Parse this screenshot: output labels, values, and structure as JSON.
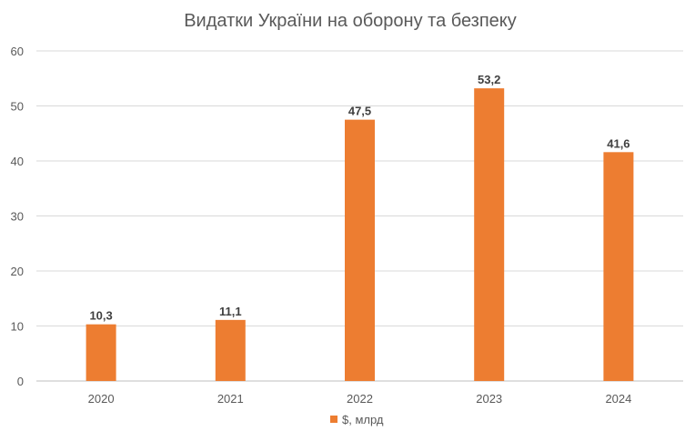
{
  "chart_data": {
    "type": "bar",
    "title": "Видатки України на оборону та безпеку",
    "categories": [
      "2020",
      "2021",
      "2022",
      "2023",
      "2024"
    ],
    "series": [
      {
        "name": "$, млрд",
        "values": [
          10.3,
          11.1,
          47.5,
          53.2,
          41.6
        ],
        "color": "#ED7D31"
      }
    ],
    "data_labels": [
      "10,3",
      "11,1",
      "47,5",
      "53,2",
      "41,6"
    ],
    "yticks": [
      "0",
      "10",
      "20",
      "30",
      "40",
      "50",
      "60"
    ],
    "ylim": [
      0,
      60
    ],
    "grid": true,
    "legend_position": "bottom"
  }
}
